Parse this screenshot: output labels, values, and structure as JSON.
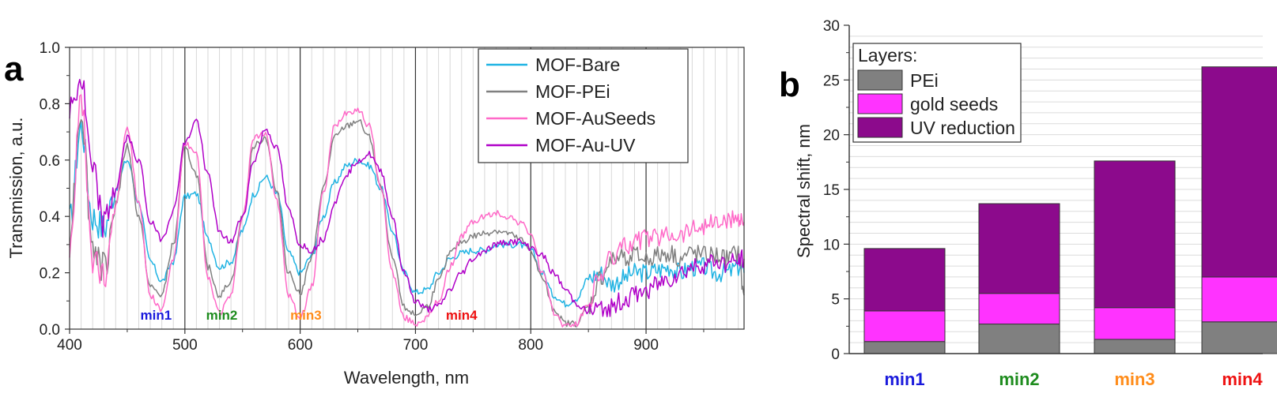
{
  "chart_data": [
    {
      "type": "line",
      "panel": "a",
      "xlabel": "Wavelength, nm",
      "ylabel": "Transmission, a.u.",
      "xlim": [
        400,
        985
      ],
      "ylim": [
        0,
        1.0
      ],
      "xticks": [
        "400",
        "500",
        "600",
        "700",
        "800",
        "900"
      ],
      "yticks": [
        "0.0",
        "0.2",
        "0.4",
        "0.6",
        "0.8",
        "1.0"
      ],
      "legend_position": "top-right",
      "series": [
        {
          "name": "MOF-Bare",
          "color": "#1fb3e3",
          "x": [
            400,
            410,
            420,
            430,
            440,
            450,
            460,
            470,
            480,
            490,
            500,
            510,
            520,
            530,
            540,
            550,
            560,
            570,
            580,
            590,
            600,
            610,
            620,
            630,
            640,
            650,
            660,
            670,
            680,
            690,
            700,
            710,
            720,
            730,
            740,
            750,
            760,
            770,
            780,
            790,
            800,
            810,
            820,
            830,
            840,
            850,
            860,
            870,
            880,
            890,
            900,
            910,
            920,
            930,
            940,
            950,
            960,
            970,
            980,
            985
          ],
          "y": [
            0.38,
            0.72,
            0.4,
            0.36,
            0.5,
            0.6,
            0.45,
            0.24,
            0.17,
            0.24,
            0.47,
            0.48,
            0.32,
            0.22,
            0.24,
            0.35,
            0.48,
            0.54,
            0.48,
            0.27,
            0.2,
            0.26,
            0.4,
            0.52,
            0.58,
            0.6,
            0.58,
            0.5,
            0.35,
            0.2,
            0.13,
            0.14,
            0.2,
            0.25,
            0.27,
            0.28,
            0.28,
            0.3,
            0.3,
            0.3,
            0.28,
            0.2,
            0.12,
            0.09,
            0.11,
            0.18,
            0.2,
            0.16,
            0.18,
            0.2,
            0.2,
            0.21,
            0.22,
            0.2,
            0.22,
            0.22,
            0.2,
            0.2,
            0.22,
            0.2
          ]
        },
        {
          "name": "MOF-PEi",
          "color": "#808080",
          "x": [
            400,
            410,
            420,
            430,
            440,
            450,
            460,
            470,
            480,
            490,
            500,
            510,
            520,
            530,
            540,
            550,
            560,
            570,
            580,
            590,
            600,
            610,
            620,
            630,
            640,
            650,
            660,
            670,
            680,
            690,
            700,
            710,
            720,
            730,
            740,
            750,
            760,
            770,
            780,
            790,
            800,
            810,
            820,
            830,
            840,
            850,
            860,
            870,
            880,
            890,
            900,
            910,
            920,
            930,
            940,
            950,
            960,
            970,
            980,
            985
          ],
          "y": [
            0.35,
            0.78,
            0.3,
            0.22,
            0.45,
            0.65,
            0.4,
            0.15,
            0.12,
            0.3,
            0.64,
            0.55,
            0.22,
            0.12,
            0.17,
            0.4,
            0.65,
            0.68,
            0.48,
            0.2,
            0.13,
            0.25,
            0.5,
            0.68,
            0.72,
            0.74,
            0.68,
            0.5,
            0.25,
            0.08,
            0.05,
            0.08,
            0.17,
            0.27,
            0.31,
            0.33,
            0.34,
            0.35,
            0.34,
            0.32,
            0.28,
            0.18,
            0.07,
            0.02,
            0.02,
            0.08,
            0.18,
            0.24,
            0.26,
            0.26,
            0.25,
            0.26,
            0.27,
            0.25,
            0.27,
            0.26,
            0.26,
            0.25,
            0.27,
            0.12
          ]
        },
        {
          "name": "MOF-AuSeeds",
          "color": "#ff69c8",
          "x": [
            400,
            410,
            420,
            430,
            440,
            450,
            460,
            470,
            480,
            490,
            500,
            510,
            520,
            530,
            540,
            550,
            560,
            570,
            580,
            590,
            600,
            610,
            620,
            630,
            640,
            650,
            660,
            670,
            680,
            690,
            700,
            710,
            720,
            730,
            740,
            750,
            760,
            770,
            780,
            790,
            800,
            810,
            820,
            830,
            840,
            850,
            860,
            870,
            880,
            890,
            900,
            910,
            920,
            930,
            940,
            950,
            960,
            970,
            980,
            985
          ],
          "y": [
            0.3,
            0.8,
            0.25,
            0.17,
            0.45,
            0.72,
            0.45,
            0.12,
            0.07,
            0.25,
            0.66,
            0.62,
            0.18,
            0.06,
            0.12,
            0.4,
            0.68,
            0.7,
            0.45,
            0.12,
            0.04,
            0.15,
            0.48,
            0.72,
            0.77,
            0.78,
            0.72,
            0.5,
            0.2,
            0.04,
            0.02,
            0.04,
            0.1,
            0.22,
            0.33,
            0.38,
            0.4,
            0.41,
            0.4,
            0.38,
            0.34,
            0.2,
            0.06,
            0.01,
            0.02,
            0.09,
            0.19,
            0.25,
            0.29,
            0.31,
            0.32,
            0.33,
            0.34,
            0.34,
            0.36,
            0.37,
            0.38,
            0.38,
            0.4,
            0.38
          ]
        },
        {
          "name": "MOF-Au-UV",
          "color": "#b000c8",
          "x": [
            400,
            410,
            420,
            430,
            440,
            450,
            460,
            470,
            480,
            490,
            500,
            510,
            520,
            530,
            540,
            550,
            560,
            570,
            580,
            590,
            600,
            610,
            620,
            630,
            640,
            650,
            660,
            670,
            680,
            690,
            700,
            710,
            720,
            730,
            740,
            750,
            760,
            770,
            780,
            790,
            800,
            810,
            820,
            830,
            840,
            850,
            860,
            870,
            880,
            890,
            900,
            910,
            920,
            930,
            940,
            950,
            960,
            970,
            980,
            985
          ],
          "y": [
            0.78,
            0.88,
            0.55,
            0.37,
            0.5,
            0.68,
            0.6,
            0.38,
            0.32,
            0.42,
            0.66,
            0.74,
            0.55,
            0.34,
            0.31,
            0.4,
            0.6,
            0.71,
            0.64,
            0.42,
            0.3,
            0.28,
            0.32,
            0.45,
            0.55,
            0.6,
            0.62,
            0.56,
            0.4,
            0.2,
            0.1,
            0.07,
            0.08,
            0.14,
            0.2,
            0.25,
            0.28,
            0.3,
            0.31,
            0.31,
            0.29,
            0.26,
            0.2,
            0.14,
            0.09,
            0.06,
            0.07,
            0.08,
            0.1,
            0.12,
            0.14,
            0.16,
            0.18,
            0.2,
            0.22,
            0.23,
            0.24,
            0.23,
            0.24,
            0.25
          ]
        }
      ],
      "annotations": [
        {
          "text": "min1",
          "x": 475,
          "y": 0.02,
          "color": "#1a1adc"
        },
        {
          "text": "min2",
          "x": 532,
          "y": 0.0,
          "color": "#1e8c1e"
        },
        {
          "text": "min3",
          "x": 605,
          "y": 0.0,
          "color": "#ff8c1a"
        },
        {
          "text": "min4",
          "x": 740,
          "y": 0.0,
          "color": "#ee1111"
        }
      ]
    },
    {
      "type": "bar",
      "subtype": "stacked",
      "panel": "b",
      "ylabel": "Spectral shift, nm",
      "ylim": [
        0,
        30
      ],
      "yticks": [
        "0",
        "5",
        "10",
        "15",
        "20",
        "25",
        "30"
      ],
      "categories": [
        "min1",
        "min2",
        "min3",
        "min4"
      ],
      "category_colors": [
        "#1a1adc",
        "#1e8c1e",
        "#ff8c1a",
        "#ee1111"
      ],
      "legend_title": "Layers:",
      "legend_position": "top-left",
      "series": [
        {
          "name": "PEi",
          "color": "#808080",
          "values": [
            1.1,
            2.7,
            1.3,
            2.9
          ]
        },
        {
          "name": "gold seeds",
          "color": "#ff33ff",
          "values": [
            2.8,
            2.8,
            2.9,
            4.1
          ]
        },
        {
          "name": "UV reduction",
          "color": "#8c0a8c",
          "values": [
            5.7,
            8.2,
            13.4,
            19.2
          ]
        }
      ]
    }
  ]
}
